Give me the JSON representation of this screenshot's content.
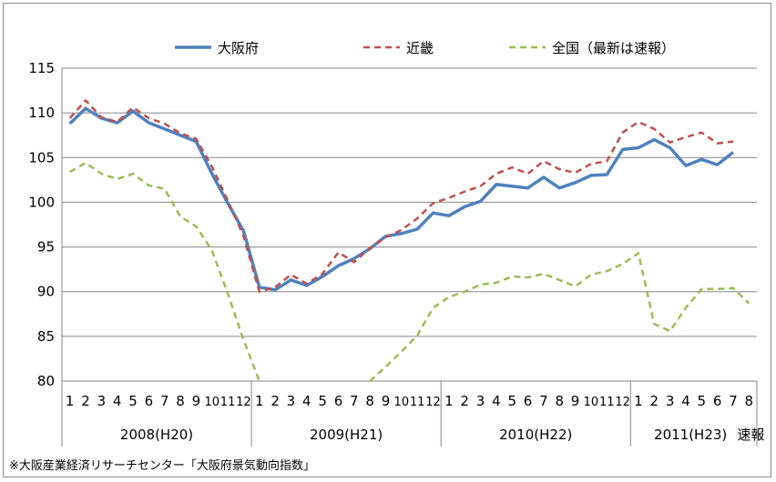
{
  "chart_data": {
    "type": "line",
    "legend": {
      "placement": "top"
    },
    "series": [
      {
        "name": "大阪府",
        "color": "#4f81bd",
        "style": "solid",
        "values": [
          108.8,
          110.5,
          109.4,
          108.9,
          110.2,
          108.9,
          108.2,
          107.5,
          106.8,
          103.2,
          99.9,
          96.8,
          90.5,
          90.2,
          91.3,
          90.7,
          91.7,
          92.9,
          93.7,
          94.8,
          96.2,
          96.5,
          97.0,
          98.8,
          98.5,
          99.5,
          100.1,
          102.0,
          101.8,
          101.6,
          102.8,
          101.6,
          102.2,
          103.0,
          103.1,
          105.9,
          106.1,
          107.0,
          106.1,
          104.1,
          104.8,
          104.2,
          105.6
        ]
      },
      {
        "name": "近畿",
        "color": "#c0504d",
        "style": "dashed",
        "values": [
          109.4,
          111.4,
          109.5,
          109.0,
          110.6,
          109.4,
          108.8,
          107.7,
          107.1,
          104.0,
          100.2,
          96.2,
          90.0,
          90.5,
          91.9,
          90.9,
          92.0,
          94.4,
          93.3,
          94.9,
          96.1,
          96.9,
          98.2,
          99.9,
          100.5,
          101.2,
          101.8,
          103.2,
          103.9,
          103.2,
          104.6,
          103.7,
          103.3,
          104.3,
          104.6,
          107.8,
          109.0,
          108.2,
          106.7,
          107.3,
          107.8,
          106.6,
          106.8
        ]
      },
      {
        "name": "全国（最新は速報）",
        "color": "#9bbb59",
        "style": "dashed",
        "values": [
          103.4,
          104.4,
          103.2,
          102.6,
          103.2,
          101.9,
          101.5,
          98.4,
          97.3,
          94.6,
          89.8,
          84.6,
          80.0,
          null,
          null,
          null,
          null,
          null,
          null,
          80.0,
          81.6,
          83.3,
          85.1,
          88.2,
          89.4,
          90.0,
          90.8,
          91.0,
          91.7,
          91.6,
          92.0,
          91.3,
          90.6,
          91.9,
          92.3,
          93.1,
          94.3,
          86.4,
          85.6,
          88.2,
          90.3,
          90.3,
          90.4,
          88.7
        ]
      }
    ],
    "ylim": [
      80,
      115
    ],
    "yticks": [
      80,
      85,
      90,
      95,
      100,
      105,
      110,
      115
    ],
    "month_labels": [
      "1",
      "2",
      "3",
      "4",
      "5",
      "6",
      "7",
      "8",
      "9",
      "10",
      "11",
      "12",
      "1",
      "2",
      "3",
      "4",
      "5",
      "6",
      "7",
      "8",
      "9",
      "10",
      "11",
      "12",
      "1",
      "2",
      "3",
      "4",
      "5",
      "6",
      "7",
      "8",
      "9",
      "10",
      "11",
      "12",
      "1",
      "2",
      "3",
      "4",
      "5",
      "6",
      "7",
      "8"
    ],
    "year_labels": [
      "2008(H20)",
      "2009(H21)",
      "2010(H22)",
      "2011(H23)"
    ],
    "preliminary_label": "速報",
    "source_note": "※大阪産業経済リサーチセンター「大阪府景気動向指数」",
    "grid": true
  }
}
